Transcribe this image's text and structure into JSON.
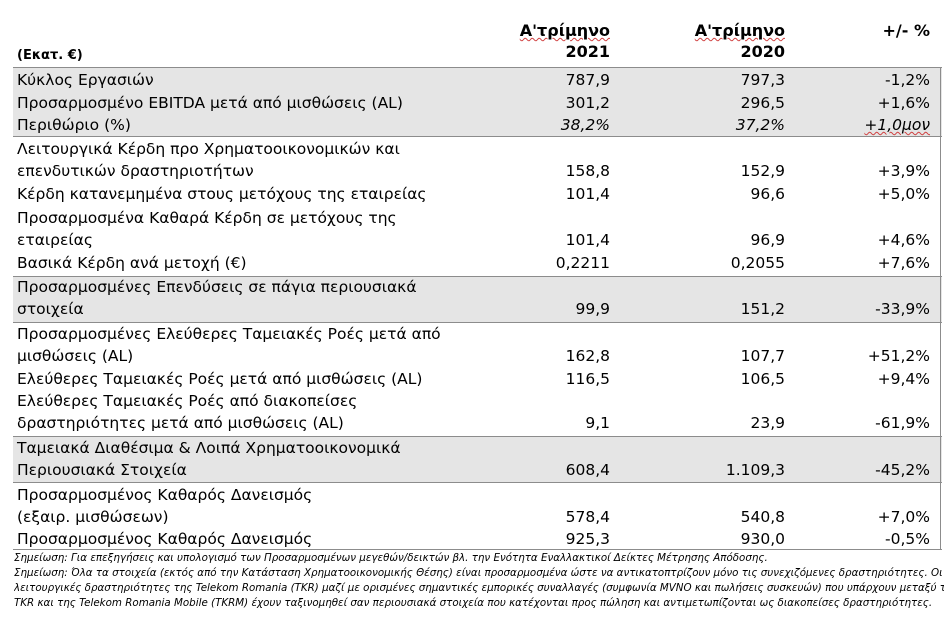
{
  "header": {
    "unit": "(Εκατ. €)",
    "col1_line1": "Α'τρίμηνο",
    "col1_line2": "2021",
    "col2_line1": "Α'τρίμηνο",
    "col2_line2": "2020",
    "col3": "+/- %"
  },
  "rows": [
    {
      "label": "Κύκλος Εργασιών",
      "v1": "787,9",
      "v2": "797,3",
      "v3": "-1,2%"
    },
    {
      "label": "Προσαρμοσμένο EBITDA μετά από μισθώσεις (AL)",
      "v1": "301,2",
      "v2": "296,5",
      "v3": "+1,6%"
    },
    {
      "label": "Περιθώριο (%)",
      "v1": "38,2%",
      "v2": "37,2%",
      "v3": "+1,0μον"
    },
    {
      "label": "Λειτουργικά Κέρδη προ Χρηματοοικονομικών και",
      "label2": "επενδυτικών δραστηριοτήτων",
      "v1": "158,8",
      "v2": "152,9",
      "v3": "+3,9%"
    },
    {
      "label": "Κέρδη κατανεμημένα στους μετόχους της εταιρείας",
      "v1": "101,4",
      "v2": "96,6",
      "v3": "+5,0%"
    },
    {
      "label": "Προσαρμοσμένα Καθαρά Κέρδη σε μετόχους της",
      "label2": "εταιρείας",
      "v1": "101,4",
      "v2": "96,9",
      "v3": "+4,6%"
    },
    {
      "label": "Βασικά Κέρδη ανά μετοχή (€)",
      "v1": "0,2211",
      "v2": "0,2055",
      "v3": "+7,6%"
    },
    {
      "label": "Προσαρμοσμένες Επενδύσεις σε πάγια περιουσιακά",
      "label2": "στοιχεία",
      "v1": "99,9",
      "v2": "151,2",
      "v3": "-33,9%"
    },
    {
      "label": "Προσαρμοσμένες  Ελεύθερες Ταμειακές Ροές μετά από",
      "label2": "μισθώσεις (AL)",
      "v1": "162,8",
      "v2": "107,7",
      "v3": "+51,2%"
    },
    {
      "label": "Ελεύθερες Ταμειακές Ροές μετά από μισθώσεις (AL)",
      "v1": "116,5",
      "v2": "106,5",
      "v3": "+9,4%"
    },
    {
      "label": "Ελεύθερες Ταμειακές Ροές από διακοπείσες",
      "label2": "δραστηριότητες μετά από μισθώσεις (AL)",
      "v1": "9,1",
      "v2": "23,9",
      "v3": "-61,9%"
    },
    {
      "label": "Ταμειακά Διαθέσιμα & Λοιπά Χρηματοοικονομικά",
      "label2": "Περιουσιακά Στοιχεία",
      "v1": "608,4",
      "v2": "1.109,3",
      "v3": "-45,2%"
    },
    {
      "label": "Προσαρμοσμένος Καθαρός Δανεισμός",
      "label2": "(εξαιρ. μισθώσεων)",
      "v1": "578,4",
      "v2": "540,8",
      "v3": "+7,0%"
    },
    {
      "label": "Προσαρμοσμένος Καθαρός Δανεισμός",
      "v1": "925,3",
      "v2": "930,0",
      "v3": "-0,5%"
    }
  ],
  "notes": [
    "Σημείωση: Για επεξηγήσεις και υπολογισμό των Προσαρμοσμένων μεγεθών/δεικτών βλ. την Ενότητα Εναλλακτικοί Δείκτες Μέτρησης Απόδοσης.",
    "Σημείωση: Όλα τα στοιχεία (εκτός από την Κατάσταση Χρηματοοικονομικής Θέσης) είναι προσαρμοσμένα ώστε να αντικατοπτρίζουν μόνο τις συνεχιζόμενες δραστηριότητες. Οι",
    "λειτουργικές δραστηριότητες της Telekom Romania (TKR) μαζί με ορισμένες σημαντικές εμπορικές συναλλαγές (συμφωνία MVNO και πωλήσεις συσκευών) που υπάρχουν μεταξύ της",
    "TKR και της Telekom Romania Mobile (TKRM) έχουν ταξινομηθεί σαν περιουσιακά στοιχεία που κατέχονται προς πώληση και αντιμετωπίζονται ως διακοπείσες δραστηριότητες."
  ]
}
